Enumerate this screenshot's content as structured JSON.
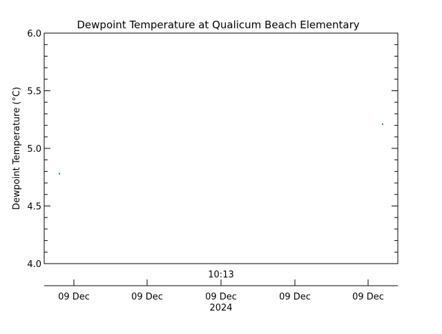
{
  "chart_data": {
    "type": "scatter",
    "title": "Dewpoint Temperature at Qualicum Beach Elementary",
    "xlabel": "",
    "ylabel": "Dewpoint Temperature (°C)",
    "ylim": [
      4.0,
      6.0
    ],
    "yticks": [
      "4.0",
      "4.5",
      "5.0",
      "5.5",
      "6.0"
    ],
    "x_time_label": "10:13",
    "x_ticks": [
      "09 Dec",
      "09 Dec",
      "09 Dec",
      "09 Dec",
      "09 Dec"
    ],
    "x_year_label": "2024",
    "grid": false,
    "series": [
      {
        "color": "#1f77b4",
        "points": [
          {
            "x": "09 Dec 2024 10:13 (start)",
            "y": 4.78
          },
          {
            "x": "09 Dec 2024 10:13 (end)",
            "y": 5.21
          }
        ]
      }
    ]
  }
}
